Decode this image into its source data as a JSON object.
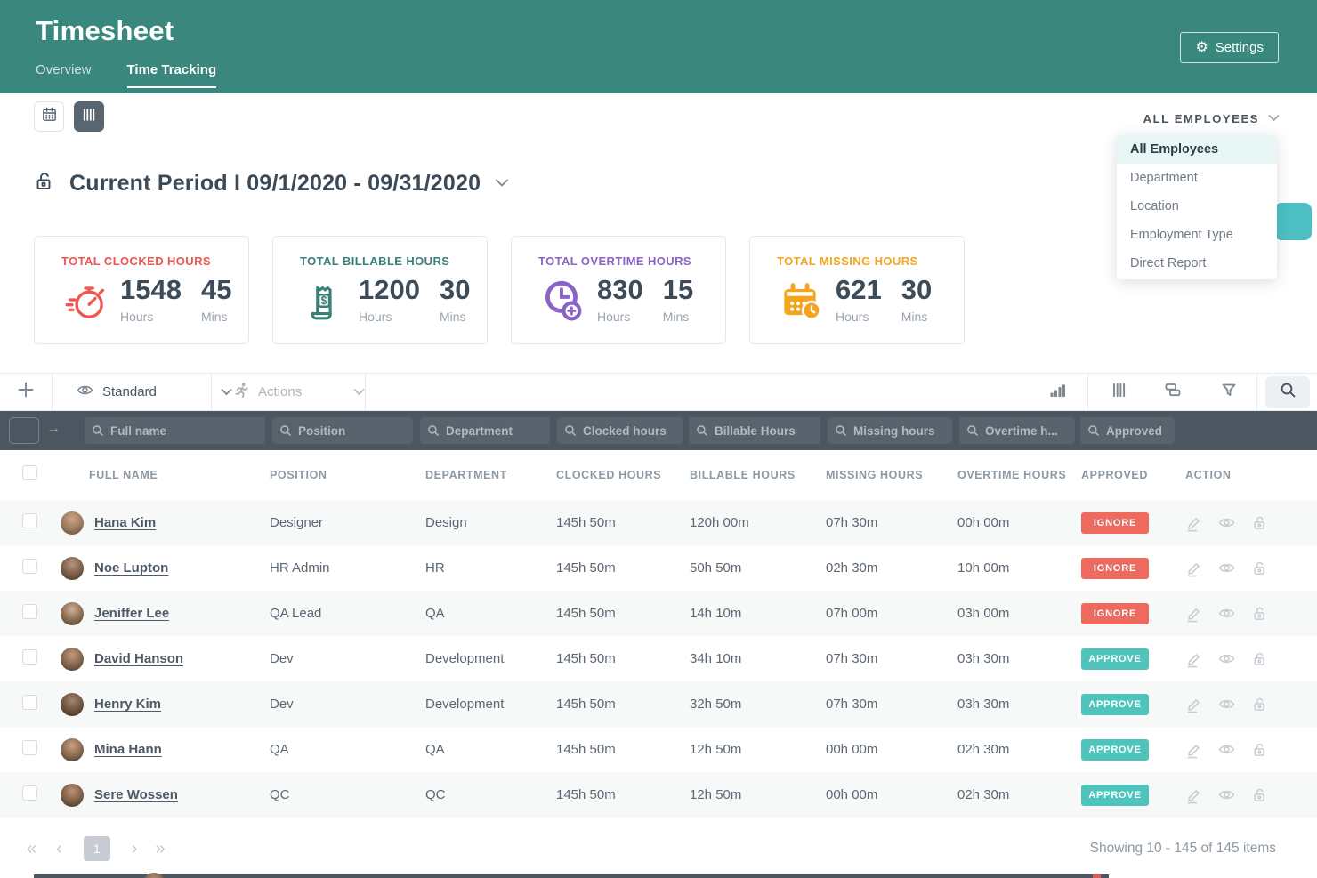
{
  "header": {
    "title": "Timesheet",
    "tabs": [
      {
        "label": "Overview"
      },
      {
        "label": "Time Tracking"
      }
    ],
    "settings_label": "Settings"
  },
  "employee_filter": {
    "selected": "ALL EMPLOYEES",
    "options": [
      "All Employees",
      "Department",
      "Location",
      "Employment Type",
      "Direct Report"
    ]
  },
  "period_title": "Current Period I 09/1/2020 - 09/31/2020",
  "stat_cards": [
    {
      "label": "TOTAL CLOCKED HOURS",
      "hours": "1548",
      "mins": "45",
      "hours_unit": "Hours",
      "mins_unit": "Mins",
      "color": "#ef5650",
      "icon": "stopwatch-icon"
    },
    {
      "label": "TOTAL BILLABLE HOURS",
      "hours": "1200",
      "mins": "30",
      "hours_unit": "Hours",
      "mins_unit": "Mins",
      "color": "#3a8078",
      "icon": "billable-receipt-icon"
    },
    {
      "label": "TOTAL OVERTIME HOURS",
      "hours": "830",
      "mins": "15",
      "hours_unit": "Hours",
      "mins_unit": "Mins",
      "color": "#8a63c9",
      "icon": "clock-plus-icon"
    },
    {
      "label": "TOTAL MISSING HOURS",
      "hours": "621",
      "mins": "30",
      "hours_unit": "Hours",
      "mins_unit": "Mins",
      "color": "#f5a51d",
      "icon": "calendar-clock-icon"
    }
  ],
  "toolbar": {
    "view_selector": "Standard",
    "actions": "Actions"
  },
  "column_filters": [
    "Full name",
    "Position",
    "Department",
    "Clocked hours",
    "Billable Hours",
    "Missing hours",
    "Overtime h...",
    "Approved"
  ],
  "table": {
    "columns": [
      "FULL NAME",
      "POSITION",
      "DEPARTMENT",
      "CLOCKED HOURS",
      "BILLABLE HOURS",
      "MISSING HOURS",
      "OVERTIME HOURS",
      "APPROVED",
      "ACTION"
    ],
    "rows": [
      {
        "name": "Hana Kim",
        "position": "Designer",
        "department": "Design",
        "clocked": "145h 50m",
        "billable": "120h 00m",
        "missing": "07h 30m",
        "overtime": "00h 00m",
        "approved": "IGNORE"
      },
      {
        "name": "Noe Lupton",
        "position": "HR Admin",
        "department": "HR",
        "clocked": "145h 50m",
        "billable": "50h 50m",
        "missing": "02h 30m",
        "overtime": "10h 00m",
        "approved": "IGNORE"
      },
      {
        "name": "Jeniffer Lee",
        "position": "QA Lead",
        "department": "QA",
        "clocked": "145h 50m",
        "billable": "14h 10m",
        "missing": "07h 00m",
        "overtime": "03h 00m",
        "approved": "IGNORE"
      },
      {
        "name": "David Hanson",
        "position": "Dev",
        "department": "Development",
        "clocked": "145h 50m",
        "billable": "34h 10m",
        "missing": "07h 30m",
        "overtime": "03h 30m",
        "approved": "APPROVE"
      },
      {
        "name": "Henry Kim",
        "position": "Dev",
        "department": "Development",
        "clocked": "145h 50m",
        "billable": "32h 50m",
        "missing": "07h 30m",
        "overtime": "03h 30m",
        "approved": "APPROVE"
      },
      {
        "name": "Mina Hann",
        "position": "QA",
        "department": "QA",
        "clocked": "145h 50m",
        "billable": "12h 50m",
        "missing": "00h 00m",
        "overtime": "02h 30m",
        "approved": "APPROVE"
      },
      {
        "name": "Sere Wossen",
        "position": "QC",
        "department": "QC",
        "clocked": "145h 50m",
        "billable": "12h 50m",
        "missing": "00h 00m",
        "overtime": "02h 30m",
        "approved": "APPROVE"
      }
    ]
  },
  "pagination": {
    "page": "1",
    "summary": "Showing 10 - 145 of 145 items"
  },
  "icons": {
    "settings_gear": "⚙",
    "arrow_right": "→",
    "first": "«",
    "prev": "‹",
    "next": "›",
    "last": "»"
  },
  "colors": {
    "header_bg": "#3a877d",
    "accent_teal": "#4cc0c4",
    "badge_ignore": "#ee6a5f",
    "badge_approve": "#4ec4bc",
    "clocked": "#ef5650",
    "billable": "#3a8078",
    "overtime": "#8a63c9",
    "missing": "#f5a51d"
  }
}
